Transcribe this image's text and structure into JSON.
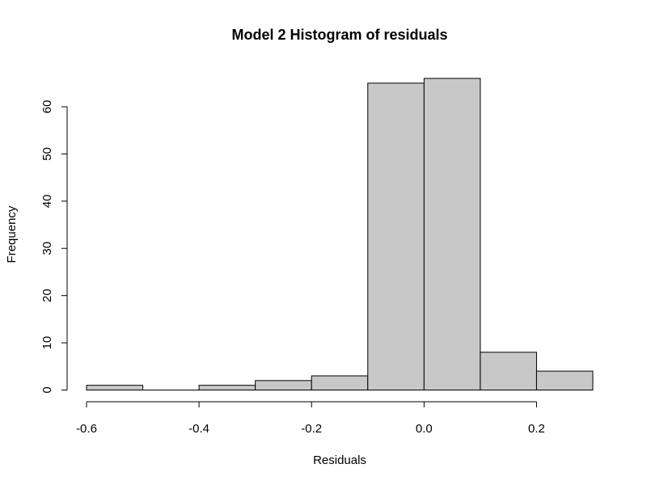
{
  "chart_data": {
    "type": "bar",
    "title": "Model 2 Histogram of residuals",
    "xlabel": "Residuals",
    "ylabel": "Frequency",
    "bin_edges": [
      -0.6,
      -0.5,
      -0.4,
      -0.3,
      -0.2,
      -0.1,
      0.0,
      0.1,
      0.2,
      0.3
    ],
    "values": [
      1,
      0,
      1,
      2,
      3,
      65,
      66,
      8,
      4
    ],
    "xlim": [
      -0.6,
      0.3
    ],
    "ylim": [
      0,
      66
    ],
    "x_ticks": [
      -0.6,
      -0.4,
      -0.2,
      0.0,
      0.2
    ],
    "x_tick_labels": [
      "-0.6",
      "-0.4",
      "-0.2",
      "0.0",
      "0.2"
    ],
    "y_ticks": [
      0,
      10,
      20,
      30,
      40,
      50,
      60
    ],
    "y_tick_labels": [
      "0",
      "10",
      "20",
      "30",
      "40",
      "50",
      "60"
    ],
    "bar_fill": "#c8c8c8",
    "bar_stroke": "#000000",
    "grid": false,
    "legend": "none"
  }
}
